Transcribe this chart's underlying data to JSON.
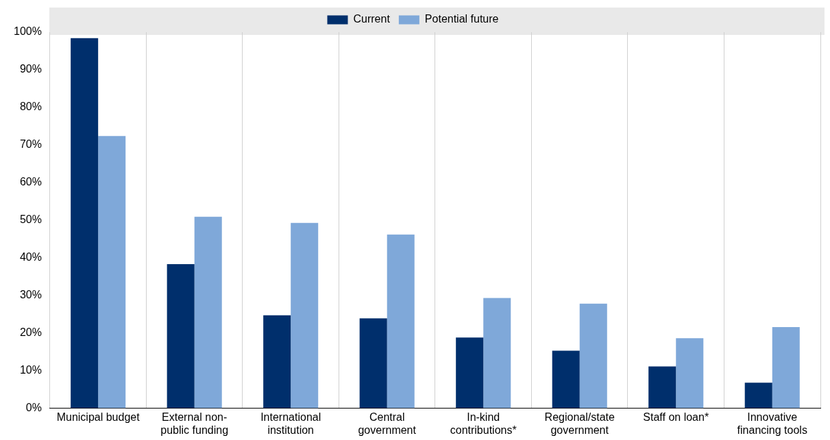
{
  "chart_data": {
    "type": "bar",
    "categories": [
      "Municipal budget",
      "External non-public funding",
      "International institution",
      "Central government",
      "In-kind contributions*",
      "Regional/state government",
      "Staff on loan*",
      "Innovative financing tools"
    ],
    "series": [
      {
        "name": "Current",
        "color": "#002f6c",
        "values": [
          98.4,
          38.3,
          24.7,
          23.9,
          18.8,
          15.3,
          11.1,
          6.8
        ]
      },
      {
        "name": "Potential future",
        "color": "#7fa8d9",
        "values": [
          72.4,
          50.9,
          49.3,
          46.2,
          29.3,
          27.8,
          18.6,
          21.6
        ]
      }
    ],
    "ylim": [
      0,
      100
    ],
    "yticks": [
      {
        "value": 0,
        "label": "0%"
      },
      {
        "value": 10,
        "label": "10%"
      },
      {
        "value": 20,
        "label": "20%"
      },
      {
        "value": 30,
        "label": "30%"
      },
      {
        "value": 40,
        "label": "40%"
      },
      {
        "value": 50,
        "label": "50%"
      },
      {
        "value": 60,
        "label": "60%"
      },
      {
        "value": 70,
        "label": "70%"
      },
      {
        "value": 80,
        "label": "80%"
      },
      {
        "value": 90,
        "label": "90%"
      },
      {
        "value": 100,
        "label": "100%"
      }
    ],
    "grid": "x",
    "legend": "top"
  }
}
